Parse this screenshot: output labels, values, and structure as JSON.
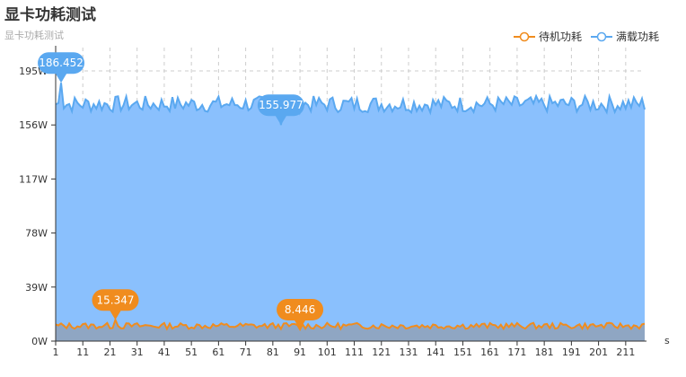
{
  "chart_data": {
    "type": "area",
    "title": "显卡功耗测试",
    "subtitle": "显卡功耗测试",
    "xlabel": "s",
    "ylabel": "",
    "x_ticks": [
      1,
      11,
      21,
      31,
      41,
      51,
      61,
      71,
      81,
      91,
      101,
      111,
      121,
      131,
      141,
      151,
      161,
      171,
      181,
      191,
      201,
      211
    ],
    "x_range": [
      1,
      218
    ],
    "ylim": [
      0,
      195
    ],
    "y_ticks": [
      "0W",
      "39W",
      "78W",
      "117W",
      "156W",
      "195W"
    ],
    "grid": true,
    "legend_position": "top-right",
    "series": [
      {
        "name": "待机功耗",
        "color": "#f08c1e",
        "base": 11,
        "jitter": 2.2,
        "markers": [
          {
            "x": 23,
            "value": 15.347
          },
          {
            "x": 91,
            "value": 8.446
          }
        ]
      },
      {
        "name": "满载功耗",
        "color": "#5aa8f0",
        "fill": "#8ac0fd",
        "base": 171,
        "jitter": 6,
        "markers": [
          {
            "x": 3,
            "value": 186.452
          },
          {
            "x": 84,
            "value": 155.977
          }
        ]
      }
    ]
  }
}
